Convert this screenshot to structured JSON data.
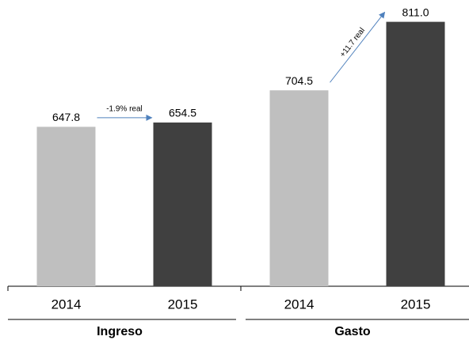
{
  "chart_data": {
    "type": "bar",
    "categories": [
      "Ingreso",
      "Gasto"
    ],
    "series": [
      {
        "name": "2014",
        "color": "#bfbfbf",
        "values": [
          647.8,
          704.5
        ],
        "value_labels": [
          "647.8",
          "704.5"
        ]
      },
      {
        "name": "2015",
        "color": "#404040",
        "values": [
          654.5,
          811.0
        ],
        "value_labels": [
          "654.5",
          "811.0"
        ]
      }
    ],
    "ylim": [
      400,
      840
    ],
    "annotations": [
      {
        "text": "-1.9% real"
      },
      {
        "text": "+11.7 real"
      }
    ]
  }
}
